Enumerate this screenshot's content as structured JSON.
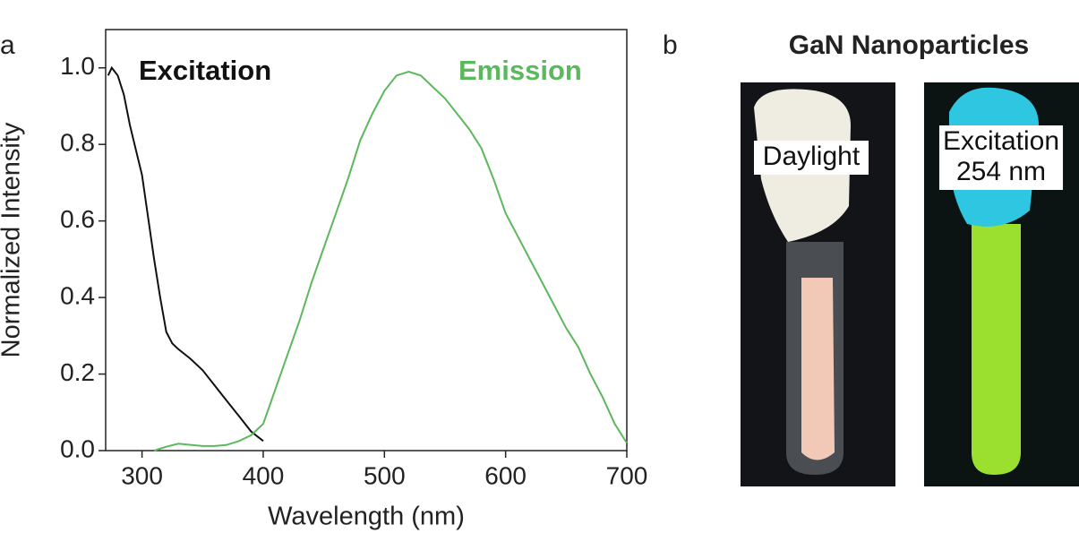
{
  "chart_data": {
    "type": "line",
    "panel_label": "a",
    "x_label": "Wavelength (nm)",
    "y_label": "Normalized Intensity",
    "xlim": [
      270,
      700
    ],
    "ylim": [
      0,
      1.1
    ],
    "xticks": [
      300,
      400,
      500,
      600,
      700
    ],
    "yticks": [
      {
        "value": 0,
        "label": "0.0"
      },
      0.2,
      0.4,
      0.6,
      0.8,
      {
        "value": 1,
        "label": "1.0"
      }
    ],
    "series": [
      {
        "name": "Excitation",
        "color": "#111111",
        "x": [
          272,
          275,
          280,
          285,
          290,
          300,
          310,
          315,
          320,
          325,
          330,
          340,
          350,
          360,
          370,
          380,
          390,
          400
        ],
        "values": [
          0.98,
          1.0,
          0.98,
          0.93,
          0.85,
          0.72,
          0.5,
          0.4,
          0.31,
          0.28,
          0.265,
          0.24,
          0.21,
          0.17,
          0.13,
          0.09,
          0.05,
          0.025
        ]
      },
      {
        "name": "Emission",
        "color": "#5cb85c",
        "x": [
          310,
          320,
          330,
          340,
          350,
          360,
          370,
          380,
          390,
          400,
          410,
          420,
          430,
          440,
          450,
          460,
          470,
          480,
          490,
          500,
          510,
          520,
          530,
          540,
          550,
          560,
          570,
          580,
          590,
          600,
          610,
          620,
          630,
          640,
          650,
          660,
          670,
          680,
          690,
          700
        ],
        "values": [
          0.0,
          0.01,
          0.018,
          0.015,
          0.012,
          0.012,
          0.015,
          0.025,
          0.04,
          0.07,
          0.16,
          0.25,
          0.34,
          0.44,
          0.53,
          0.62,
          0.71,
          0.81,
          0.88,
          0.94,
          0.98,
          0.99,
          0.98,
          0.95,
          0.92,
          0.88,
          0.84,
          0.79,
          0.71,
          0.62,
          0.56,
          0.5,
          0.44,
          0.38,
          0.32,
          0.27,
          0.2,
          0.14,
          0.07,
          0.02
        ]
      }
    ]
  },
  "photo_panel": {
    "panel_label": "b",
    "title": "GaN Nanoparticles",
    "photos": [
      {
        "label_lines": [
          "Daylight"
        ]
      },
      {
        "label_lines": [
          "Excitation",
          "254 nm"
        ]
      }
    ]
  }
}
